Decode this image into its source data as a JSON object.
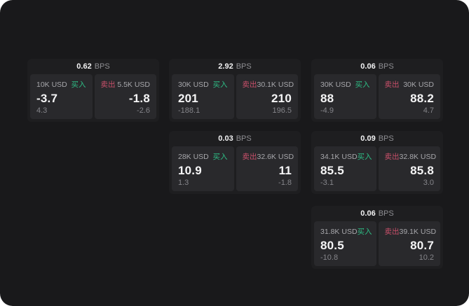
{
  "colors": {
    "buy_green": "#2ebd85",
    "sell_red": "#c9506a",
    "surface_bg": "#19191b",
    "card_bg": "#1e1e20",
    "panel_bg": "#29292c",
    "text_primary": "#f5f5f6",
    "text_secondary": "#a7a7ab",
    "text_muted": "#85858a"
  },
  "cards": [
    {
      "bps": "0.62",
      "unit": "BPS",
      "buy": {
        "size": "10K USD",
        "label": "买入",
        "price": "-3.7",
        "sub": "4.3"
      },
      "sell": {
        "label": "卖出",
        "size": "5.5K USD",
        "price": "-1.8",
        "sub": "-2.6"
      }
    },
    {
      "bps": "2.92",
      "unit": "BPS",
      "buy": {
        "size": "30K USD",
        "label": "买入",
        "price": "201",
        "sub": "-188.1"
      },
      "sell": {
        "label": "卖出",
        "size": "30.1K USD",
        "price": "210",
        "sub": "196.5"
      }
    },
    {
      "bps": "0.06",
      "unit": "BPS",
      "buy": {
        "size": "30K USD",
        "label": "买入",
        "price": "88",
        "sub": "-4.9"
      },
      "sell": {
        "label": "卖出",
        "size": "30K USD",
        "price": "88.2",
        "sub": "4.7"
      }
    },
    {
      "bps": "0.03",
      "unit": "BPS",
      "buy": {
        "size": "28K USD",
        "label": "买入",
        "price": "10.9",
        "sub": "1.3"
      },
      "sell": {
        "label": "卖出",
        "size": "32.6K USD",
        "price": "11",
        "sub": "-1.8"
      }
    },
    {
      "bps": "0.09",
      "unit": "BPS",
      "buy": {
        "size": "34.1K USD",
        "label": "买入",
        "price": "85.5",
        "sub": "-3.1"
      },
      "sell": {
        "label": "卖出",
        "size": "32.8K USD",
        "price": "85.8",
        "sub": "3.0"
      }
    },
    {
      "bps": "0.06",
      "unit": "BPS",
      "buy": {
        "size": "31.8K USD",
        "label": "买入",
        "price": "80.5",
        "sub": "-10.8"
      },
      "sell": {
        "label": "卖出",
        "size": "39.1K USD",
        "price": "80.7",
        "sub": "10.2"
      }
    }
  ]
}
